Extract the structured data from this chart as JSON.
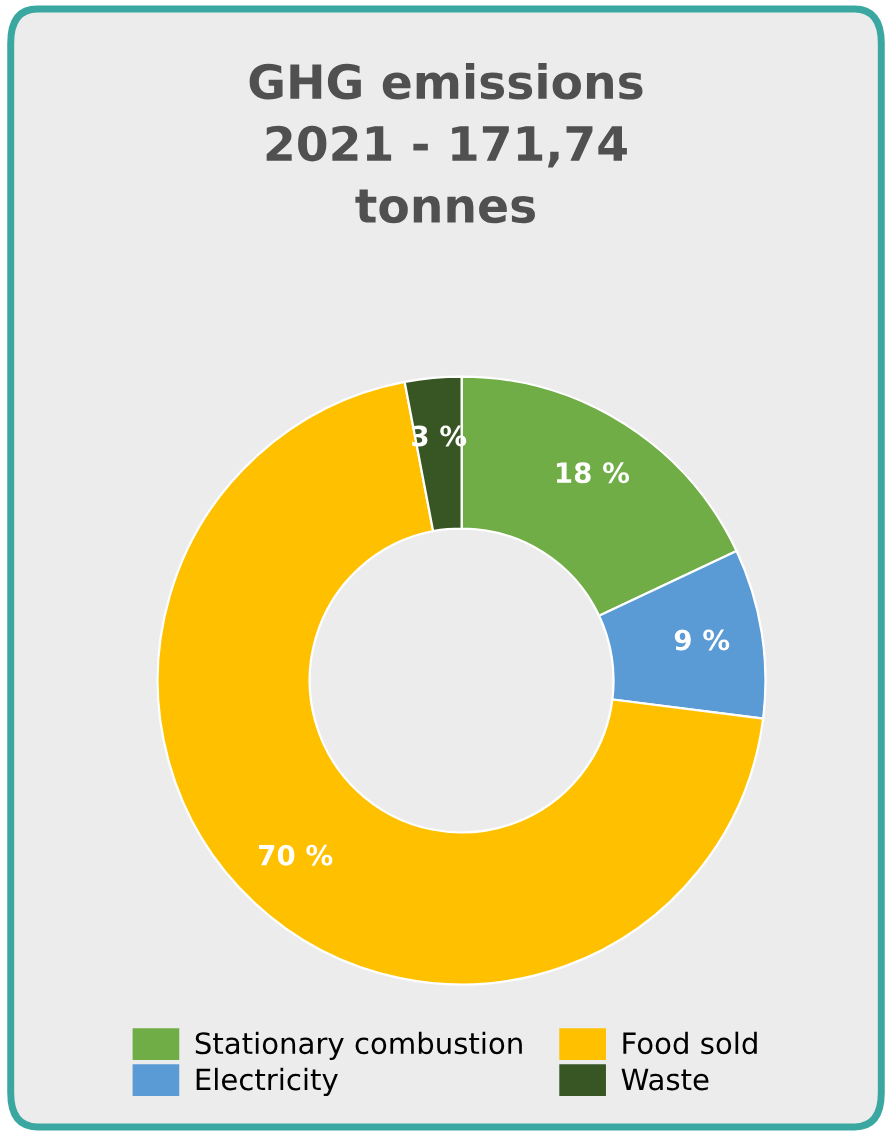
{
  "chart_data": {
    "type": "donut",
    "title": "GHG emissions\n2021 - 171,74\ntonnes",
    "categories": [
      "Stationary combustion",
      "Electricity",
      "Food sold",
      "Waste"
    ],
    "values": [
      18,
      9,
      70,
      3
    ],
    "colors": [
      "#70ad47",
      "#5b9bd5",
      "#ffc000",
      "#375623"
    ],
    "value_labels": [
      "18 %",
      "9 %",
      "70 %",
      "3 %"
    ],
    "legend": "bottom"
  }
}
